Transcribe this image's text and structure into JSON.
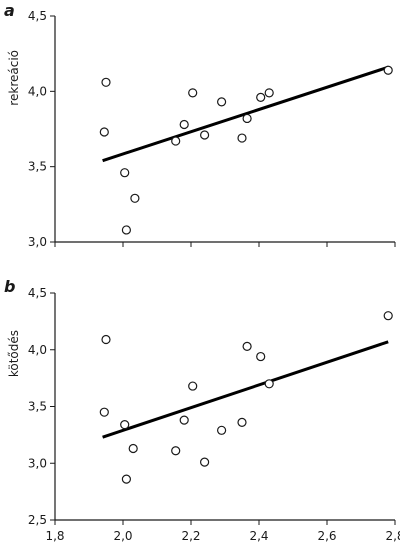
{
  "chart_data": [
    {
      "type": "scatter",
      "panel_label": "a",
      "ylabel": "rekreáció",
      "xlabel": "",
      "xlim": [
        1.8,
        2.8
      ],
      "ylim": [
        3.0,
        4.5
      ],
      "yticks": [
        "3,0",
        "3,5",
        "4,0",
        "4,5"
      ],
      "ytick_values": [
        3.0,
        3.5,
        4.0,
        4.5
      ],
      "grid": false,
      "points": [
        {
          "x": 1.95,
          "y": 4.06
        },
        {
          "x": 1.945,
          "y": 3.73
        },
        {
          "x": 2.005,
          "y": 3.46
        },
        {
          "x": 2.035,
          "y": 3.29
        },
        {
          "x": 2.01,
          "y": 3.08
        },
        {
          "x": 2.155,
          "y": 3.67
        },
        {
          "x": 2.18,
          "y": 3.78
        },
        {
          "x": 2.205,
          "y": 3.99
        },
        {
          "x": 2.24,
          "y": 3.71
        },
        {
          "x": 2.29,
          "y": 3.93
        },
        {
          "x": 2.35,
          "y": 3.69
        },
        {
          "x": 2.365,
          "y": 3.82
        },
        {
          "x": 2.405,
          "y": 3.96
        },
        {
          "x": 2.43,
          "y": 3.99
        },
        {
          "x": 2.78,
          "y": 4.14
        }
      ],
      "trend": [
        [
          1.94,
          3.54
        ],
        [
          2.78,
          4.16
        ]
      ]
    },
    {
      "type": "scatter",
      "panel_label": "b",
      "ylabel": "kötődés",
      "xlabel": "",
      "xlim": [
        1.8,
        2.8
      ],
      "ylim": [
        2.5,
        4.5
      ],
      "xticks": [
        "1,8",
        "2,0",
        "2,2",
        "2,4",
        "2,6",
        "2,8"
      ],
      "xtick_values": [
        1.8,
        2.0,
        2.2,
        2.4,
        2.6,
        2.8
      ],
      "yticks": [
        "2,5",
        "3,0",
        "3,5",
        "4,0",
        "4,5"
      ],
      "ytick_values": [
        2.5,
        3.0,
        3.5,
        4.0,
        4.5
      ],
      "grid": false,
      "points": [
        {
          "x": 1.95,
          "y": 4.09
        },
        {
          "x": 1.945,
          "y": 3.45
        },
        {
          "x": 2.005,
          "y": 3.34
        },
        {
          "x": 2.03,
          "y": 3.13
        },
        {
          "x": 2.01,
          "y": 2.86
        },
        {
          "x": 2.155,
          "y": 3.11
        },
        {
          "x": 2.18,
          "y": 3.38
        },
        {
          "x": 2.205,
          "y": 3.68
        },
        {
          "x": 2.24,
          "y": 3.01
        },
        {
          "x": 2.29,
          "y": 3.29
        },
        {
          "x": 2.35,
          "y": 3.36
        },
        {
          "x": 2.365,
          "y": 4.03
        },
        {
          "x": 2.405,
          "y": 3.94
        },
        {
          "x": 2.43,
          "y": 3.7
        },
        {
          "x": 2.78,
          "y": 4.3
        }
      ],
      "trend": [
        [
          1.94,
          3.23
        ],
        [
          2.78,
          4.07
        ]
      ]
    }
  ]
}
